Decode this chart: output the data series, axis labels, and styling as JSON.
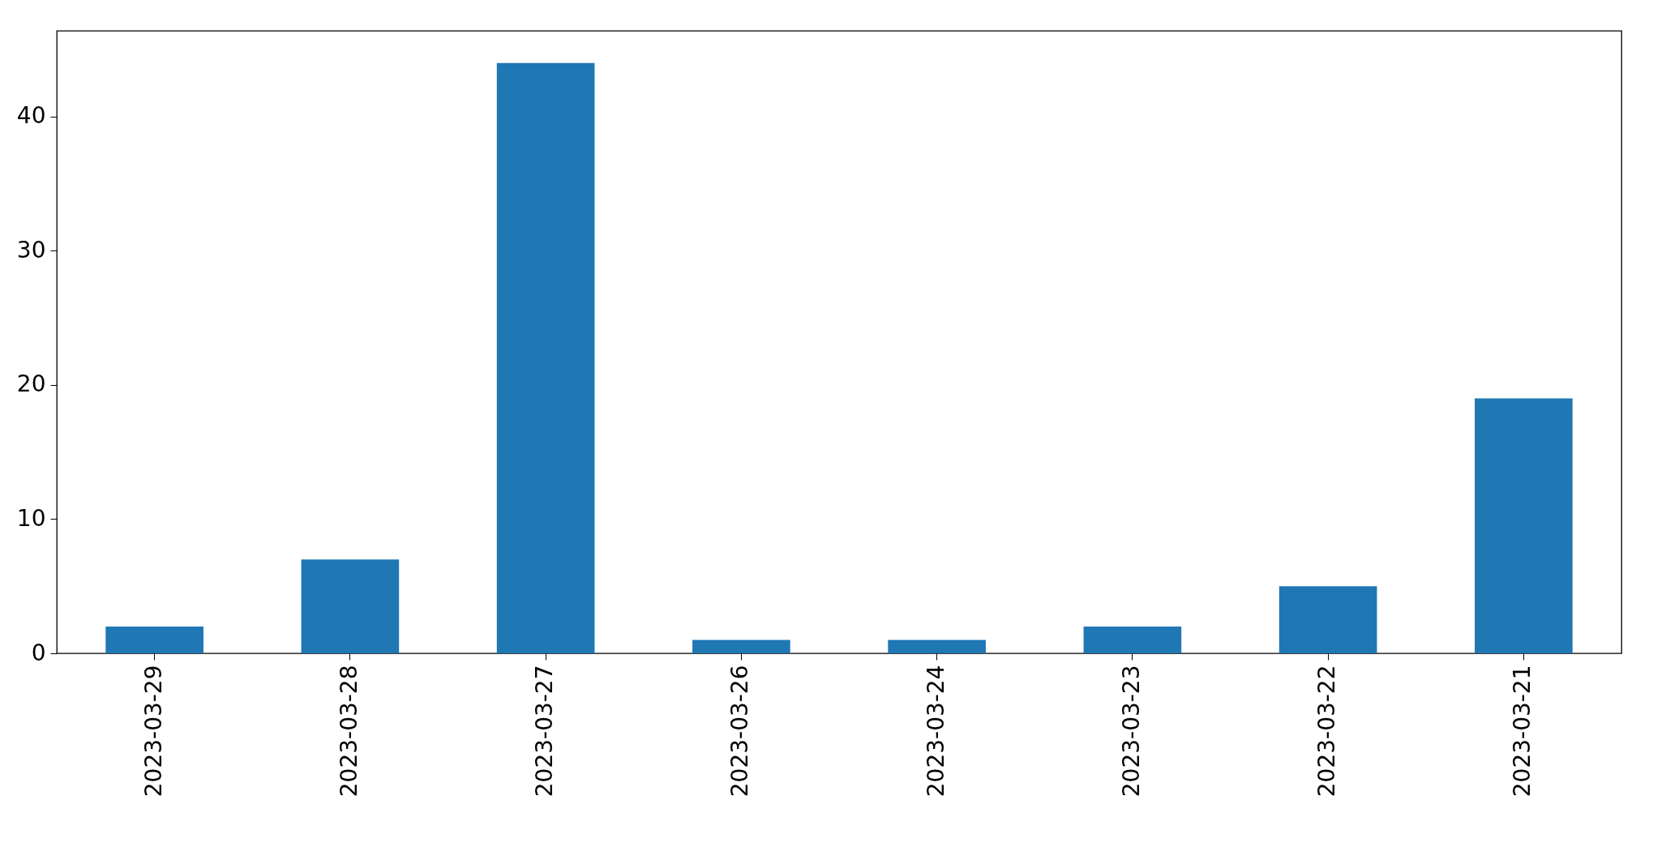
{
  "chart_data": {
    "type": "bar",
    "categories": [
      "2023-03-29",
      "2023-03-28",
      "2023-03-27",
      "2023-03-26",
      "2023-03-24",
      "2023-03-23",
      "2023-03-22",
      "2023-03-21"
    ],
    "values": [
      2,
      7,
      44,
      1,
      1,
      2,
      5,
      19
    ],
    "color": "#1f77b4",
    "ylim": [
      0,
      46.4
    ],
    "yticks": [
      0,
      10,
      20,
      30,
      40
    ],
    "grid": false
  }
}
